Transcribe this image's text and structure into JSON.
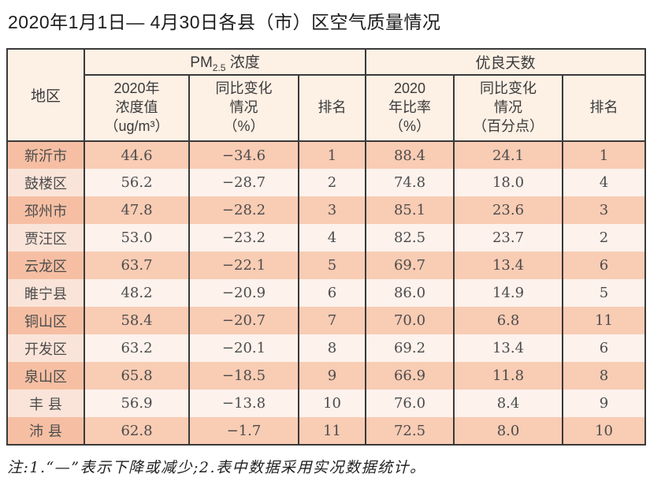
{
  "title": "2020年1月1日— 4月30日各县（市）区空气质量情况",
  "table": {
    "region_header": "地区",
    "pm_group": {
      "pre": "PM",
      "sub": "2.5",
      "post": " 浓度"
    },
    "good_days_group": "优良天数",
    "sub_headers": [
      "2020年\n浓度值\n（ug/m³）",
      "同比变化\n情况\n（%）",
      "排名",
      "2020\n年比率\n（%）",
      "同比变化\n情况\n（百分点）",
      "排名"
    ],
    "rows": [
      [
        "新沂市",
        "44.6",
        "−34.6",
        "1",
        "88.4",
        "24.1",
        "1"
      ],
      [
        "鼓楼区",
        "56.2",
        "−28.7",
        "2",
        "74.8",
        "18.0",
        "4"
      ],
      [
        "邳州市",
        "47.8",
        "−28.2",
        "3",
        "85.1",
        "23.6",
        "3"
      ],
      [
        "贾汪区",
        "53.0",
        "−23.2",
        "4",
        "82.5",
        "23.7",
        "2"
      ],
      [
        "云龙区",
        "63.7",
        "−22.1",
        "5",
        "69.7",
        "13.4",
        "6"
      ],
      [
        "睢宁县",
        "48.2",
        "−20.9",
        "6",
        "86.0",
        "14.9",
        "5"
      ],
      [
        "铜山区",
        "58.4",
        "−20.7",
        "7",
        "70.0",
        "6.8",
        "11"
      ],
      [
        "开发区",
        "63.2",
        "−20.1",
        "8",
        "69.2",
        "13.4",
        "6"
      ],
      [
        "泉山区",
        "65.8",
        "−18.5",
        "9",
        "66.9",
        "11.8",
        "8"
      ],
      [
        "丰 县",
        "56.9",
        "−13.8",
        "10",
        "76.0",
        "8.4",
        "9"
      ],
      [
        "沛 县",
        "62.8",
        "−1.7",
        "11",
        "72.5",
        "8.0",
        "10"
      ]
    ]
  },
  "note": "注:1.“—”表示下降或减少;2.表中数据采用实况数据统计。",
  "colors": {
    "border": "#3a3a3a",
    "header_bg": "#fdf0e5",
    "band_salmon": "#f9ccb4",
    "band_light": "#fdf2ec",
    "region_salmon": "#f6bfa3",
    "region_light": "#fae4d9"
  }
}
